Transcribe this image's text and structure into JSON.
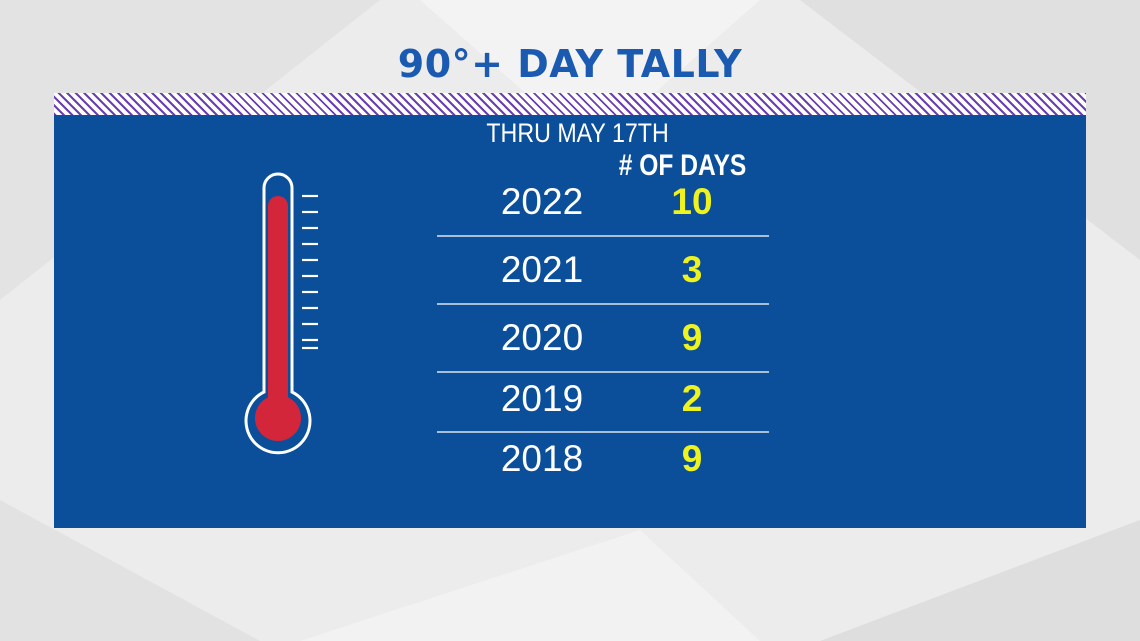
{
  "title": "90°+ DAY TALLY",
  "subtitle": "THRU MAY 17TH",
  "column_header": "# OF DAYS",
  "colors": {
    "title": "#1a5ab0",
    "panel": "#0b4f9a",
    "values": "#eef21e",
    "thermometer_fill": "#d4263a",
    "stripe": "#6a3fb0"
  },
  "chart_data": {
    "type": "table",
    "title": "90°+ DAY TALLY",
    "subtitle": "THRU MAY 17TH",
    "columns": [
      "",
      "# OF DAYS"
    ],
    "categories": [
      "2022",
      "2021",
      "2020",
      "2019",
      "2018"
    ],
    "values": [
      10,
      3,
      9,
      2,
      9
    ]
  },
  "rows": [
    {
      "year": "2022",
      "days": "10"
    },
    {
      "year": "2021",
      "days": "3"
    },
    {
      "year": "2020",
      "days": "9"
    },
    {
      "year": "2019",
      "days": "2"
    },
    {
      "year": "2018",
      "days": "9"
    }
  ]
}
